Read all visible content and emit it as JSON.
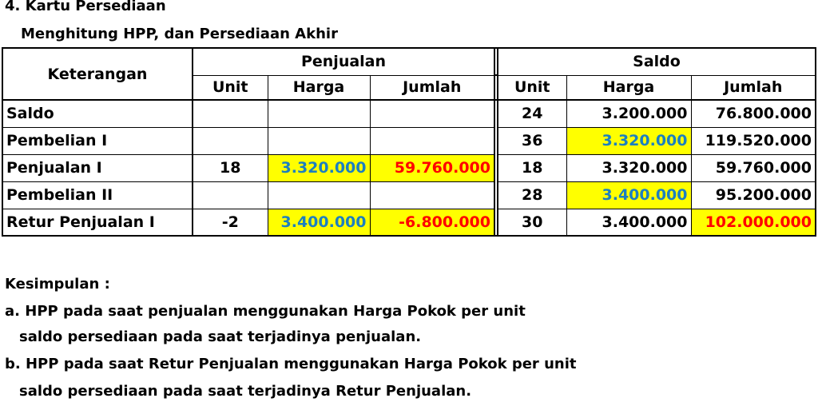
{
  "title": "4. Kartu Persediaan",
  "subtitle": "Menghitung HPP, dan Persediaan Akhir",
  "table": {
    "col_keterangan": "Keterangan",
    "group_penjualan": "Penjualan",
    "group_saldo": "Saldo",
    "sub_unit": "Unit",
    "sub_harga": "Harga",
    "sub_jumlah": "Jumlah",
    "rows": [
      {
        "label": "Saldo",
        "p_unit": "",
        "p_harga": "",
        "p_jumlah": "",
        "s_unit": "24",
        "s_harga": "3.200.000",
        "s_jumlah": "76.800.000"
      },
      {
        "label": "Pembelian I",
        "p_unit": "",
        "p_harga": "",
        "p_jumlah": "",
        "s_unit": "36",
        "s_harga": "3.320.000",
        "s_jumlah": "119.520.000"
      },
      {
        "label": "Penjualan I",
        "p_unit": "18",
        "p_harga": "3.320.000",
        "p_jumlah": "59.760.000",
        "s_unit": "18",
        "s_harga": "3.320.000",
        "s_jumlah": "59.760.000"
      },
      {
        "label": "Pembelian II",
        "p_unit": "",
        "p_harga": "",
        "p_jumlah": "",
        "s_unit": "28",
        "s_harga": "3.400.000",
        "s_jumlah": "95.200.000"
      },
      {
        "label": "Retur Penjualan I",
        "p_unit": "-2",
        "p_harga": "3.400.000",
        "p_jumlah": "-6.800.000",
        "s_unit": "30",
        "s_harga": "3.400.000",
        "s_jumlah": "102.000.000"
      }
    ]
  },
  "conclusion": {
    "heading": "Kesimpulan :",
    "a_line1": "a. HPP pada saat penjualan menggunakan Harga Pokok per unit",
    "a_line2": "saldo persediaan pada saat terjadinya penjualan.",
    "b_line1": "b. HPP pada saat Retur Penjualan menggunakan Harga Pokok per unit",
    "b_line2": "saldo persediaan pada saat terjadinya Retur Penjualan."
  },
  "colors": {
    "highlight_yellow": "#ffff00",
    "text_blue": "#1c7fc0",
    "text_red": "#ff0000"
  }
}
